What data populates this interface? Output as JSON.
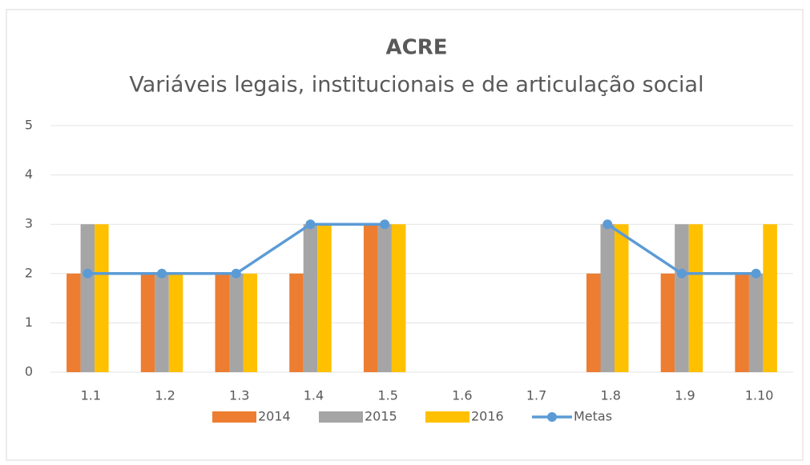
{
  "chart_data": {
    "type": "bar",
    "title": "ACRE",
    "subtitle": "Variáveis legais, institucionais e de articulação social",
    "categories": [
      "1.1",
      "1.2",
      "1.3",
      "1.4",
      "1.5",
      "1.6",
      "1.7",
      "1.8",
      "1.9",
      "1.10"
    ],
    "series": [
      {
        "name": "2014",
        "color": "#ed7d31",
        "values": [
          2,
          2,
          2,
          2,
          3,
          null,
          null,
          2,
          2,
          2
        ]
      },
      {
        "name": "2015",
        "color": "#a5a5a5",
        "values": [
          3,
          2,
          2,
          3,
          3,
          null,
          null,
          3,
          3,
          2
        ]
      },
      {
        "name": "2016",
        "color": "#ffc000",
        "values": [
          3,
          2,
          2,
          3,
          3,
          null,
          null,
          3,
          3,
          3
        ]
      },
      {
        "name": "Metas",
        "color": "#5b9bd5",
        "type": "line",
        "values": [
          2,
          2,
          2,
          3,
          3,
          null,
          null,
          3,
          2,
          2
        ]
      }
    ],
    "ylim": [
      0,
      5
    ],
    "yticks": [
      0,
      1,
      2,
      3,
      4,
      5
    ],
    "grid": true,
    "legend": "bottom"
  }
}
